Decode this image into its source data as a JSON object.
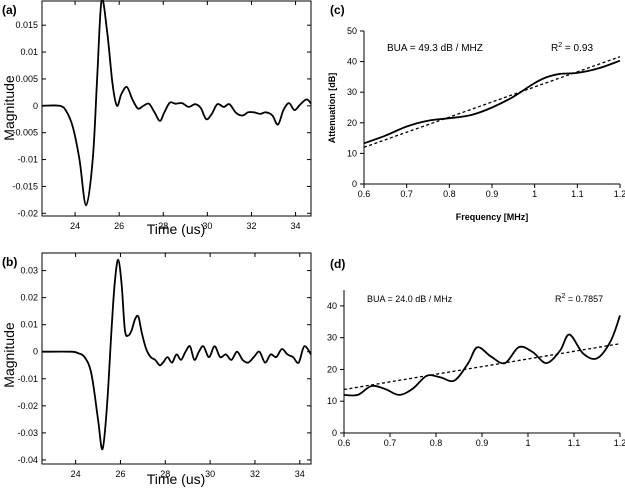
{
  "chart_data": [
    {
      "id": "a",
      "panel_label": "(a)",
      "type": "line",
      "xlabel": "Time (us)",
      "ylabel": "Magnitude",
      "xlim": [
        22.5,
        34.7
      ],
      "ylim": [
        -0.0205,
        0.0195
      ],
      "xticks": [
        24,
        26,
        28,
        30,
        32,
        34
      ],
      "xtick_labels": [
        "24",
        "26",
        "28",
        "30",
        "32",
        "34"
      ],
      "yticks": [
        0.015,
        0.01,
        0.005,
        0,
        -0.005,
        -0.01,
        -0.015,
        -0.02
      ],
      "ytick_labels": [
        "0.015",
        "0.01",
        "0.005",
        "0",
        "-0.005",
        "-0.01",
        "-0.015",
        "-0.02"
      ],
      "series": [
        {
          "name": "waveform",
          "x": [
            22.5,
            23.3,
            23.6,
            23.9,
            24.2,
            24.5,
            24.8,
            25.0,
            25.2,
            25.45,
            25.7,
            25.9,
            26.1,
            26.35,
            26.6,
            26.85,
            27.1,
            27.35,
            27.6,
            27.85,
            28.05,
            28.3,
            28.55,
            28.85,
            29.15,
            29.45,
            29.7,
            29.95,
            30.2,
            30.45,
            30.75,
            31.0,
            31.3,
            31.6,
            31.85,
            32.1,
            32.4,
            32.65,
            32.95,
            33.2,
            33.45,
            33.7,
            33.95,
            34.2,
            34.5,
            34.7
          ],
          "y": [
            0,
            0,
            -0.001,
            -0.004,
            -0.01,
            -0.0185,
            -0.01,
            0.005,
            0.0195,
            0.014,
            0.004,
            0,
            0.0022,
            0.0035,
            0.0012,
            -0.0005,
            0,
            0.0004,
            -0.0012,
            -0.0028,
            -0.0012,
            0.0006,
            0.0004,
            0.0005,
            -0.0002,
            0.0003,
            -0.0004,
            -0.0025,
            -0.0015,
            0.0003,
            -0.0002,
            0.0003,
            -0.0013,
            -0.0018,
            -0.0012,
            -0.0012,
            -0.0015,
            -0.0012,
            -0.0018,
            -0.0035,
            -0.0008,
            0.0005,
            -0.0008,
            0.0002,
            0.0012,
            0.0004
          ]
        }
      ]
    },
    {
      "id": "b",
      "panel_label": "(b)",
      "type": "line",
      "xlabel": "Time (us)",
      "ylabel": "Magnitude",
      "xlim": [
        22.5,
        34.5
      ],
      "ylim": [
        -0.0415,
        0.0365
      ],
      "xticks": [
        24,
        26,
        28,
        30,
        32,
        34
      ],
      "xtick_labels": [
        "24",
        "26",
        "28",
        "30",
        "32",
        "34"
      ],
      "yticks": [
        0.03,
        0.02,
        0.01,
        0,
        -0.01,
        -0.02,
        -0.03,
        -0.04
      ],
      "ytick_labels": [
        "0.03",
        "0.02",
        "0.01",
        "0",
        "-0.01",
        "-0.02",
        "-0.03",
        "-0.04"
      ],
      "series": [
        {
          "name": "waveform",
          "x": [
            22.5,
            23.8,
            24.1,
            24.4,
            24.7,
            25.0,
            25.2,
            25.4,
            25.6,
            25.75,
            25.9,
            26.05,
            26.2,
            26.35,
            26.5,
            26.65,
            26.8,
            26.95,
            27.15,
            27.35,
            27.55,
            27.75,
            27.9,
            28.1,
            28.3,
            28.5,
            28.7,
            28.9,
            29.1,
            29.3,
            29.5,
            29.7,
            29.95,
            30.2,
            30.45,
            30.7,
            30.95,
            31.2,
            31.45,
            31.7,
            31.95,
            32.2,
            32.45,
            32.7,
            32.95,
            33.2,
            33.45,
            33.7,
            33.95,
            34.2,
            34.5
          ],
          "y": [
            0,
            0,
            -0.0005,
            -0.002,
            -0.008,
            -0.025,
            -0.036,
            -0.02,
            0.008,
            0.026,
            0.034,
            0.025,
            0.008,
            0.006,
            0.008,
            0.012,
            0.013,
            0.007,
            0.001,
            -0.002,
            -0.003,
            -0.005,
            -0.004,
            -0.002,
            -0.004,
            -0.001,
            -0.003,
            0,
            0.002,
            -0.003,
            0,
            0.002,
            -0.002,
            0.002,
            -0.002,
            -0.001,
            -0.003,
            0,
            -0.003,
            -0.004,
            -0.002,
            0,
            -0.004,
            -0.001,
            -0.002,
            0.001,
            -0.001,
            -0.002,
            -0.004,
            0.002,
            -0.001
          ]
        }
      ]
    },
    {
      "id": "c",
      "panel_label": "(c)",
      "type": "line",
      "xlabel": "Frequency [MHz]",
      "ylabel": "Attenuation [dB]",
      "xlim": [
        0.6,
        1.2
      ],
      "ylim": [
        0,
        50
      ],
      "xticks": [
        0.6,
        0.7,
        0.8,
        0.9,
        1,
        1.1,
        1.2
      ],
      "xtick_labels": [
        "0.6",
        "0.7",
        "0.8",
        "0.9",
        "1",
        "1.1",
        "1.2"
      ],
      "yticks": [
        0,
        10,
        20,
        30,
        40,
        50
      ],
      "ytick_labels": [
        "0",
        "10",
        "20",
        "30",
        "40",
        "50"
      ],
      "annotation_left": "BUA = 49.3 dB / MHZ",
      "annotation_right_base": "R",
      "annotation_right_sup": "2",
      "annotation_right_rest": " = 0.93",
      "series": [
        {
          "name": "measured",
          "style": "solid",
          "x": [
            0.6,
            0.65,
            0.7,
            0.75,
            0.8,
            0.85,
            0.9,
            0.95,
            1.0,
            1.03,
            1.06,
            1.1,
            1.15,
            1.2
          ],
          "y": [
            13.3,
            15.8,
            18.8,
            20.7,
            21.5,
            22.5,
            25.0,
            28.5,
            33.0,
            35.0,
            36.0,
            36.3,
            37.8,
            40.3
          ]
        },
        {
          "name": "linear fit",
          "style": "dashed",
          "x": [
            0.6,
            1.2
          ],
          "y": [
            12.0,
            41.6
          ]
        }
      ]
    },
    {
      "id": "d",
      "panel_label": "(d)",
      "type": "line",
      "xlabel": "",
      "ylabel": "",
      "xlim": [
        0.6,
        1.2
      ],
      "ylim": [
        0,
        45
      ],
      "xticks": [
        0.6,
        0.7,
        0.8,
        0.9,
        1,
        1.1,
        1.2
      ],
      "xtick_labels": [
        "0.6",
        "0.7",
        "0.8",
        "0.9",
        "1",
        "1.1",
        "1.2"
      ],
      "yticks": [
        0,
        10,
        20,
        30,
        40
      ],
      "ytick_labels": [
        "0",
        "10",
        "20",
        "30",
        "40"
      ],
      "annotation_left": "BUA = 24.0 dB / MHz",
      "annotation_right_base": "R",
      "annotation_right_sup": "2",
      "annotation_right_rest": " = 0.7857",
      "series": [
        {
          "name": "measured",
          "style": "solid",
          "x": [
            0.6,
            0.63,
            0.66,
            0.69,
            0.72,
            0.75,
            0.78,
            0.81,
            0.84,
            0.87,
            0.89,
            0.92,
            0.95,
            0.98,
            1.01,
            1.04,
            1.07,
            1.09,
            1.12,
            1.15,
            1.18,
            1.2
          ],
          "y": [
            12.0,
            12.0,
            14.8,
            13.8,
            12.0,
            14.0,
            18.0,
            17.5,
            16.5,
            22.0,
            27.0,
            24.0,
            22.0,
            27.0,
            25.5,
            22.0,
            26.0,
            31.0,
            25.0,
            23.5,
            29.0,
            37.0
          ]
        },
        {
          "name": "linear fit",
          "style": "dashed",
          "x": [
            0.6,
            1.2
          ],
          "y": [
            13.7,
            28.1
          ]
        }
      ]
    }
  ]
}
